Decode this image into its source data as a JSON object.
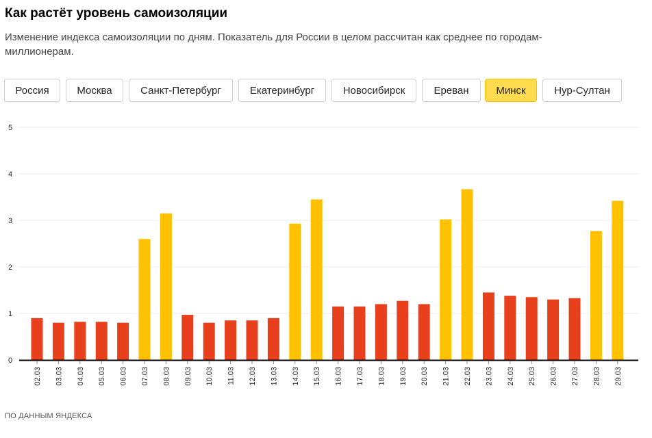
{
  "title": "Как растёт уровень самоизоляции",
  "subtitle": "Изменение индекса самоизоляции по дням. Показатель для России в целом рассчитан как среднее по городам-миллионерам.",
  "tabs": [
    {
      "label": "Россия",
      "active": false
    },
    {
      "label": "Москва",
      "active": false
    },
    {
      "label": "Санкт-Петербург",
      "active": false
    },
    {
      "label": "Екатеринбург",
      "active": false
    },
    {
      "label": "Новосибирск",
      "active": false
    },
    {
      "label": "Ереван",
      "active": false
    },
    {
      "label": "Минск",
      "active": true
    },
    {
      "label": "Нур-Султан",
      "active": false
    }
  ],
  "source": "ПО ДАННЫМ ЯНДЕКСА",
  "colors": {
    "weekday": "#e8401c",
    "weekend": "#ffc100",
    "axis": "#000000",
    "grid": "#eeeeee"
  },
  "chart_data": {
    "type": "bar",
    "title": "Как растёт уровень самоизоляции",
    "xlabel": "",
    "ylabel": "",
    "ylim": [
      0,
      5
    ],
    "yticks": [
      0,
      1,
      2,
      3,
      4,
      5
    ],
    "categories": [
      "02.03",
      "03.03",
      "04.03",
      "05.03",
      "06.03",
      "07.03",
      "08.03",
      "09.03",
      "10.03",
      "11.03",
      "12.03",
      "13.03",
      "14.03",
      "15.03",
      "16.03",
      "17.03",
      "18.03",
      "19.03",
      "20.03",
      "21.03",
      "22.03",
      "23.03",
      "24.03",
      "25.03",
      "26.03",
      "27.03",
      "28.03",
      "29.03"
    ],
    "values": [
      0.9,
      0.8,
      0.82,
      0.82,
      0.8,
      2.6,
      3.15,
      0.97,
      0.8,
      0.85,
      0.85,
      0.9,
      2.93,
      3.45,
      1.15,
      1.15,
      1.2,
      1.27,
      1.2,
      3.02,
      3.67,
      1.45,
      1.38,
      1.35,
      1.3,
      1.33,
      2.77,
      3.42
    ],
    "weekend": [
      false,
      false,
      false,
      false,
      false,
      true,
      true,
      false,
      false,
      false,
      false,
      false,
      true,
      true,
      false,
      false,
      false,
      false,
      false,
      true,
      true,
      false,
      false,
      false,
      false,
      false,
      true,
      true
    ],
    "grid": true
  }
}
